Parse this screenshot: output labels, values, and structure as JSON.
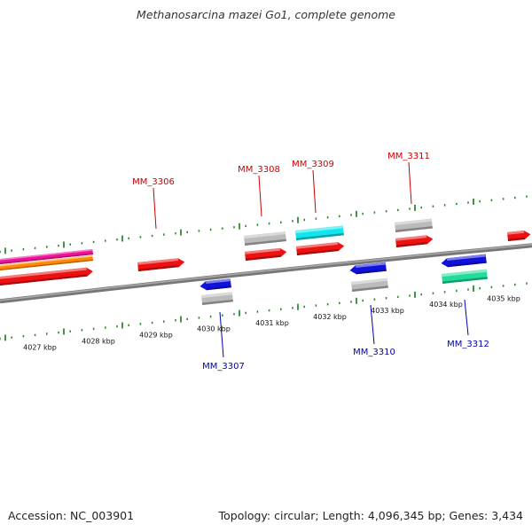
{
  "title": "Methanosarcina mazei Go1, complete genome",
  "footer": {
    "accession": "Accession: NC_003901",
    "summary": "Topology: circular; Length: 4,096,345 bp; Genes: 3,434"
  },
  "colors": {
    "backbone": "#777777",
    "tick": "#2e8b2e",
    "forward_label": "#cc0000",
    "reverse_label": "#0000aa",
    "red_cds": "#ee1111",
    "grey_feature": "#bbbbbb",
    "blue_cds": "#1111dd",
    "cyan_feature": "#11e6ee",
    "green_feature": "#22dd99",
    "magenta_feature": "#ee1199",
    "orange_feature": "#ff8800"
  },
  "scale": {
    "tick_labels": [
      "4027 kbp",
      "4028 kbp",
      "4029 kbp",
      "4030 kbp",
      "4031 kbp",
      "4032 kbp",
      "4033 kbp",
      "4034 kbp",
      "4035 kbp"
    ]
  },
  "genes": {
    "forward": [
      "MM_3306",
      "MM_3308",
      "MM_3309",
      "MM_3311"
    ],
    "reverse": [
      "MM_3307",
      "MM_3310",
      "MM_3312"
    ]
  }
}
